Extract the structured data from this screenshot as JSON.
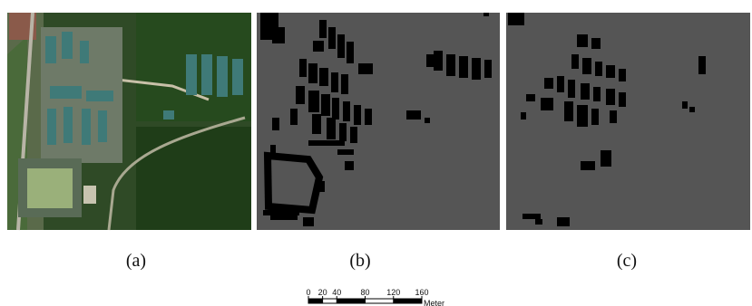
{
  "panels": [
    {
      "caption": "(a)"
    },
    {
      "caption": "(b)"
    },
    {
      "caption": "(c)"
    }
  ],
  "scale_bar": {
    "ticks": [
      0,
      20,
      40,
      80,
      120,
      160
    ],
    "unit": "Meter"
  }
}
